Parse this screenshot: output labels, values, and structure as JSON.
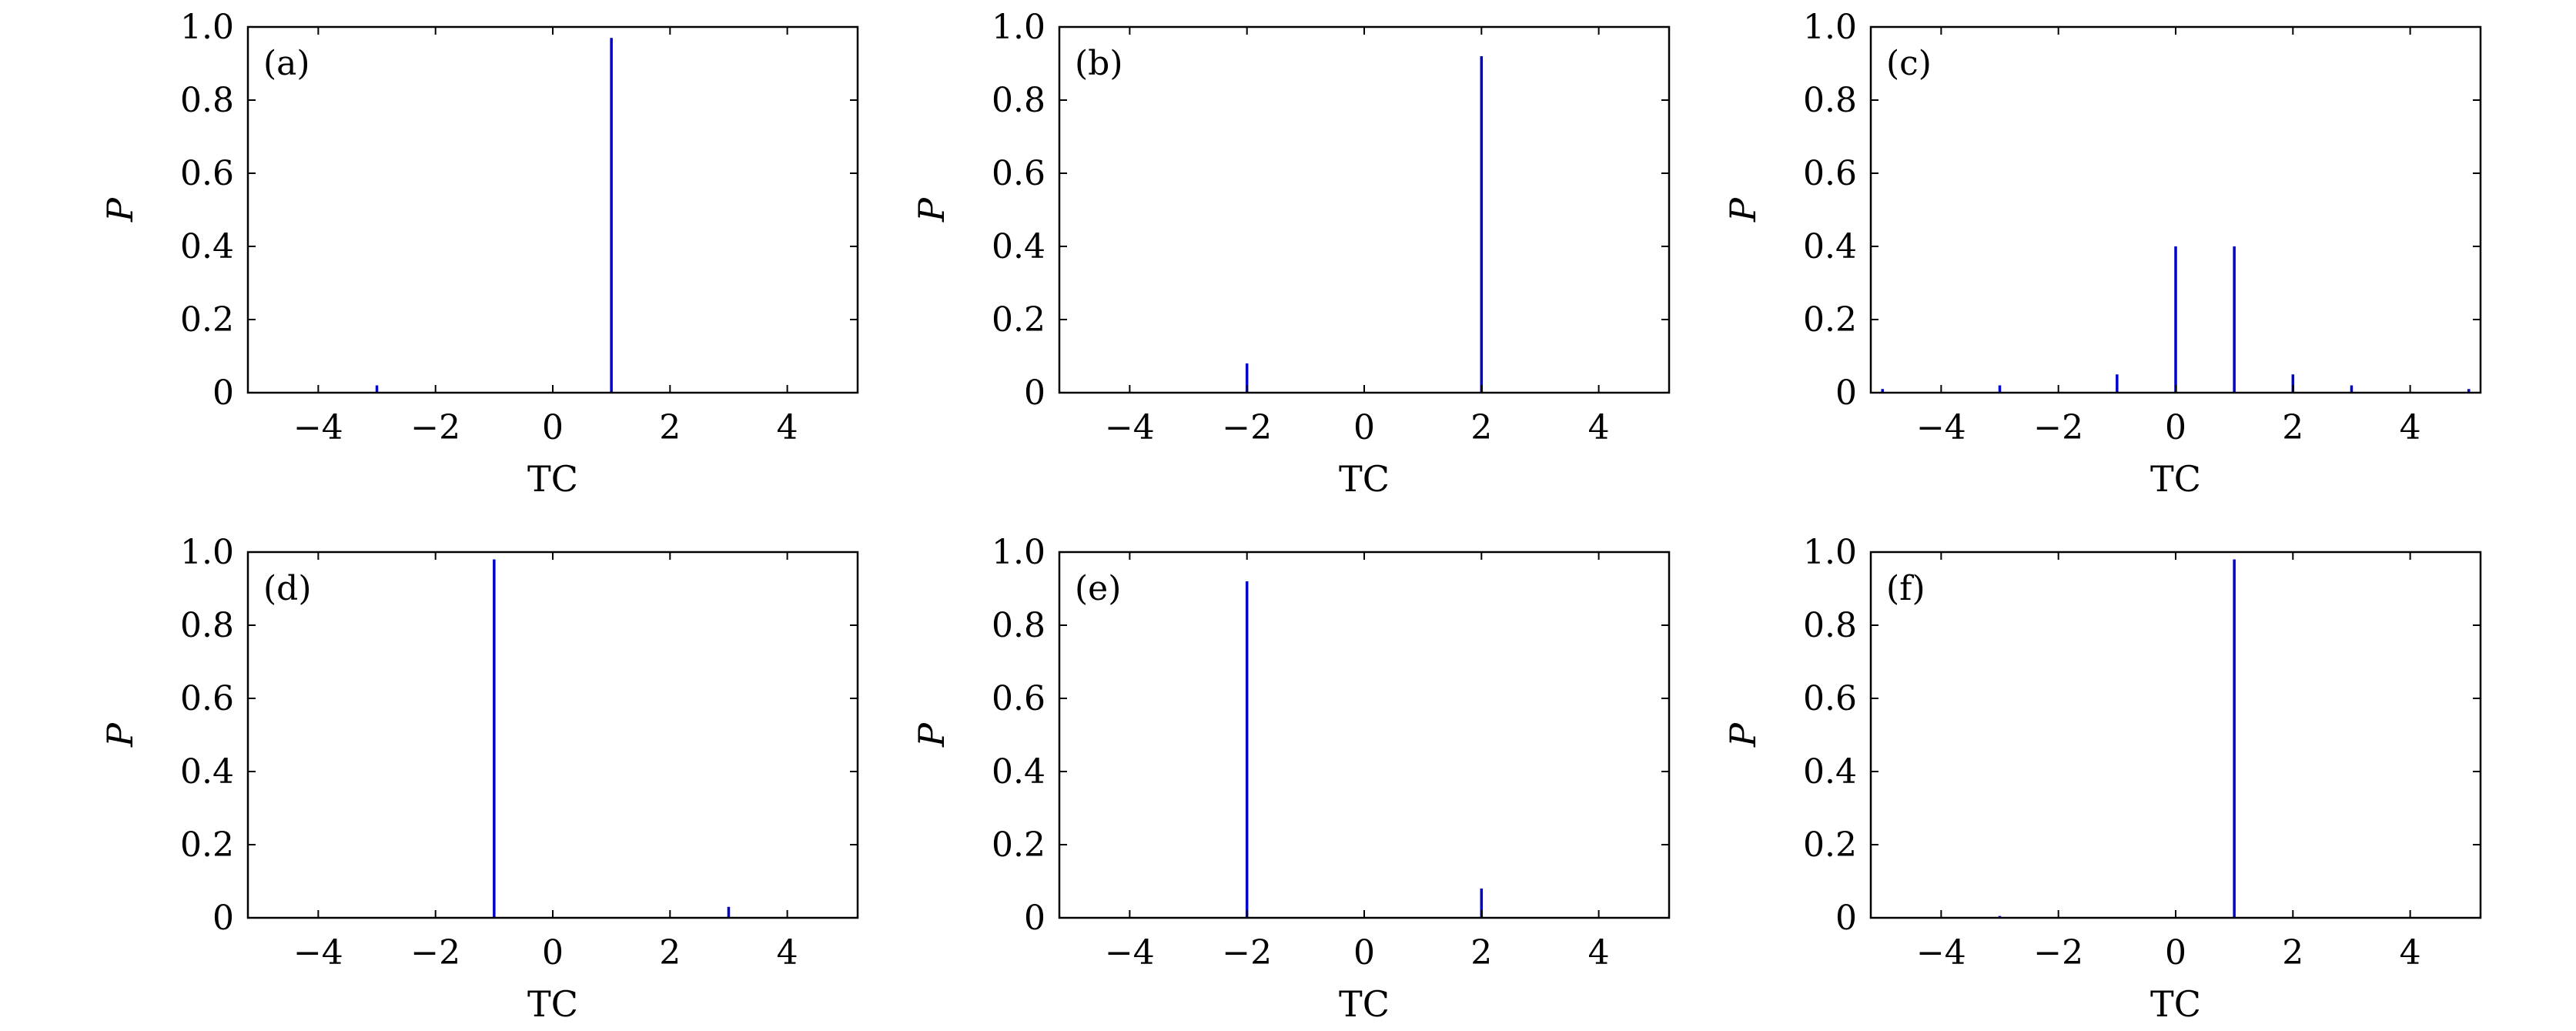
{
  "chart_data": [
    {
      "type": "bar",
      "panel_label": "(a)",
      "xlabel": "TC",
      "ylabel": "P",
      "xlim": [
        -5.2,
        5.2
      ],
      "ylim": [
        0,
        1.0
      ],
      "x_ticks": [
        -4,
        -2,
        0,
        2,
        4
      ],
      "x_tick_labels": [
        "−4",
        "−2",
        "0",
        "2",
        "4"
      ],
      "y_ticks": [
        0,
        0.2,
        0.4,
        0.6,
        0.8,
        1.0
      ],
      "y_tick_labels": [
        "0",
        "0.2",
        "0.4",
        "0.6",
        "0.8",
        "1.0"
      ],
      "x": [
        -3,
        1
      ],
      "values": [
        0.02,
        0.97
      ]
    },
    {
      "type": "bar",
      "panel_label": "(b)",
      "xlabel": "TC",
      "ylabel": "P",
      "xlim": [
        -5.2,
        5.2
      ],
      "ylim": [
        0,
        1.0
      ],
      "x_ticks": [
        -4,
        -2,
        0,
        2,
        4
      ],
      "x_tick_labels": [
        "−4",
        "−2",
        "0",
        "2",
        "4"
      ],
      "y_ticks": [
        0,
        0.2,
        0.4,
        0.6,
        0.8,
        1.0
      ],
      "y_tick_labels": [
        "0",
        "0.2",
        "0.4",
        "0.6",
        "0.8",
        "1.0"
      ],
      "x": [
        -2,
        2
      ],
      "values": [
        0.08,
        0.92
      ]
    },
    {
      "type": "bar",
      "panel_label": "(c)",
      "xlabel": "TC",
      "ylabel": "P",
      "xlim": [
        -5.2,
        5.2
      ],
      "ylim": [
        0,
        1.0
      ],
      "x_ticks": [
        -4,
        -2,
        0,
        2,
        4
      ],
      "x_tick_labels": [
        "−4",
        "−2",
        "0",
        "2",
        "4"
      ],
      "y_ticks": [
        0,
        0.2,
        0.4,
        0.6,
        0.8,
        1.0
      ],
      "y_tick_labels": [
        "0",
        "0.2",
        "0.4",
        "0.6",
        "0.8",
        "1.0"
      ],
      "x": [
        -5,
        -3,
        -1,
        0,
        1,
        2,
        3,
        5
      ],
      "values": [
        0.01,
        0.02,
        0.05,
        0.4,
        0.4,
        0.05,
        0.02,
        0.01
      ]
    },
    {
      "type": "bar",
      "panel_label": "(d)",
      "xlabel": "TC",
      "ylabel": "P",
      "xlim": [
        -5.2,
        5.2
      ],
      "ylim": [
        0,
        1.0
      ],
      "x_ticks": [
        -4,
        -2,
        0,
        2,
        4
      ],
      "x_tick_labels": [
        "−4",
        "−2",
        "0",
        "2",
        "4"
      ],
      "y_ticks": [
        0,
        0.2,
        0.4,
        0.6,
        0.8,
        1.0
      ],
      "y_tick_labels": [
        "0",
        "0.2",
        "0.4",
        "0.6",
        "0.8",
        "1.0"
      ],
      "x": [
        -1,
        3
      ],
      "values": [
        0.98,
        0.03
      ]
    },
    {
      "type": "bar",
      "panel_label": "(e)",
      "xlabel": "TC",
      "ylabel": "P",
      "xlim": [
        -5.2,
        5.2
      ],
      "ylim": [
        0,
        1.0
      ],
      "x_ticks": [
        -4,
        -2,
        0,
        2,
        4
      ],
      "x_tick_labels": [
        "−4",
        "−2",
        "0",
        "2",
        "4"
      ],
      "y_ticks": [
        0,
        0.2,
        0.4,
        0.6,
        0.8,
        1.0
      ],
      "y_tick_labels": [
        "0",
        "0.2",
        "0.4",
        "0.6",
        "0.8",
        "1.0"
      ],
      "x": [
        -2,
        2
      ],
      "values": [
        0.92,
        0.08
      ]
    },
    {
      "type": "bar",
      "panel_label": "(f)",
      "xlabel": "TC",
      "ylabel": "P",
      "xlim": [
        -5.2,
        5.2
      ],
      "ylim": [
        0,
        1.0
      ],
      "x_ticks": [
        -4,
        -2,
        0,
        2,
        4
      ],
      "x_tick_labels": [
        "−4",
        "−2",
        "0",
        "2",
        "4"
      ],
      "y_ticks": [
        0,
        0.2,
        0.4,
        0.6,
        0.8,
        1.0
      ],
      "y_tick_labels": [
        "0",
        "0.2",
        "0.4",
        "0.6",
        "0.8",
        "1.0"
      ],
      "x": [
        -3,
        1
      ],
      "values": [
        0.005,
        0.98
      ]
    }
  ],
  "colors": {
    "bar": "#0000cc",
    "axis": "#000000",
    "background": "#ffffff"
  }
}
